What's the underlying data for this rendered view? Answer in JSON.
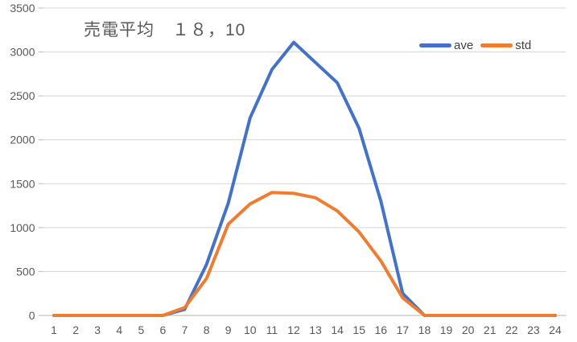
{
  "chart": {
    "title": "売電平均　１８，10",
    "background": "#FFFFFF",
    "grid_color": "#D9D9D9",
    "axis_color": "#C0C0C0",
    "tick_label_color": "#595959",
    "title_color": "#595959",
    "legend_text_color": "#404040"
  },
  "legend": {
    "items": [
      {
        "label": "ave",
        "color": "#4472C4"
      },
      {
        "label": "std",
        "color": "#ED7D31"
      }
    ]
  },
  "chart_data": {
    "type": "line",
    "title": "売電平均　１８，10",
    "categories": [
      1,
      2,
      3,
      4,
      5,
      6,
      7,
      8,
      9,
      10,
      11,
      12,
      13,
      14,
      15,
      16,
      17,
      18,
      19,
      20,
      21,
      22,
      23,
      24
    ],
    "series": [
      {
        "name": "ave",
        "color": "#4472C4",
        "values": [
          0,
          0,
          0,
          0,
          0,
          0,
          70,
          580,
          1280,
          2250,
          2800,
          3110,
          2880,
          2650,
          2130,
          1300,
          250,
          0,
          0,
          0,
          0,
          0,
          0,
          0
        ]
      },
      {
        "name": "std",
        "color": "#ED7D31",
        "values": [
          0,
          0,
          0,
          0,
          0,
          0,
          90,
          420,
          1040,
          1270,
          1400,
          1390,
          1340,
          1190,
          950,
          620,
          200,
          0,
          0,
          0,
          0,
          0,
          0,
          0
        ]
      }
    ],
    "xlabel": "",
    "ylabel": "",
    "ylim": [
      0,
      3500
    ],
    "yticks": [
      0,
      500,
      1000,
      1500,
      2000,
      2500,
      3000,
      3500
    ],
    "grid": true,
    "legend_position": "top-right"
  }
}
